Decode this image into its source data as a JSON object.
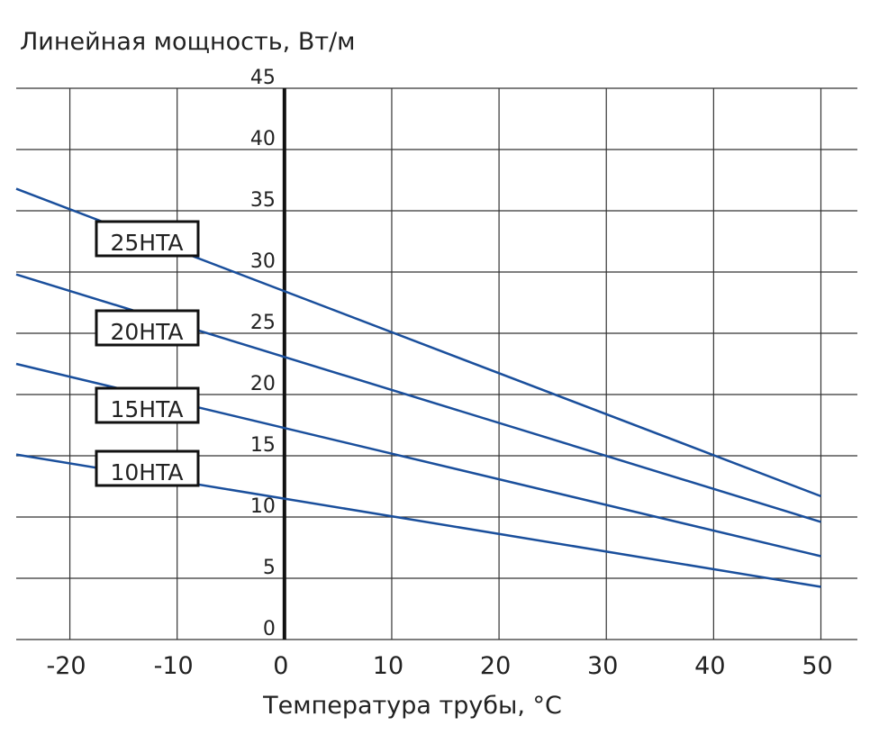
{
  "chart_data": {
    "type": "line",
    "y_label": "Линейная мощность, Вт/м",
    "x_label": "Температура трубы, °C",
    "x": [
      -25,
      50
    ],
    "series": [
      {
        "name": "25HTA",
        "color": "#1a4f9c",
        "values": [
          36.8,
          11.7
        ]
      },
      {
        "name": "20HTA",
        "color": "#1a4f9c",
        "values": [
          29.8,
          9.6
        ]
      },
      {
        "name": "15HTA",
        "color": "#1a4f9c",
        "values": [
          22.5,
          6.8
        ]
      },
      {
        "name": "10HTA",
        "color": "#1a4f9c",
        "values": [
          15.1,
          4.3
        ]
      }
    ],
    "xlim": [
      -25,
      53.4
    ],
    "ylim": [
      0,
      45
    ],
    "xticks": [
      -20,
      -10,
      0,
      10,
      20,
      30,
      40,
      50
    ],
    "yticks": [
      0,
      5,
      10,
      15,
      20,
      25,
      30,
      35,
      40,
      45
    ],
    "grid": true
  }
}
